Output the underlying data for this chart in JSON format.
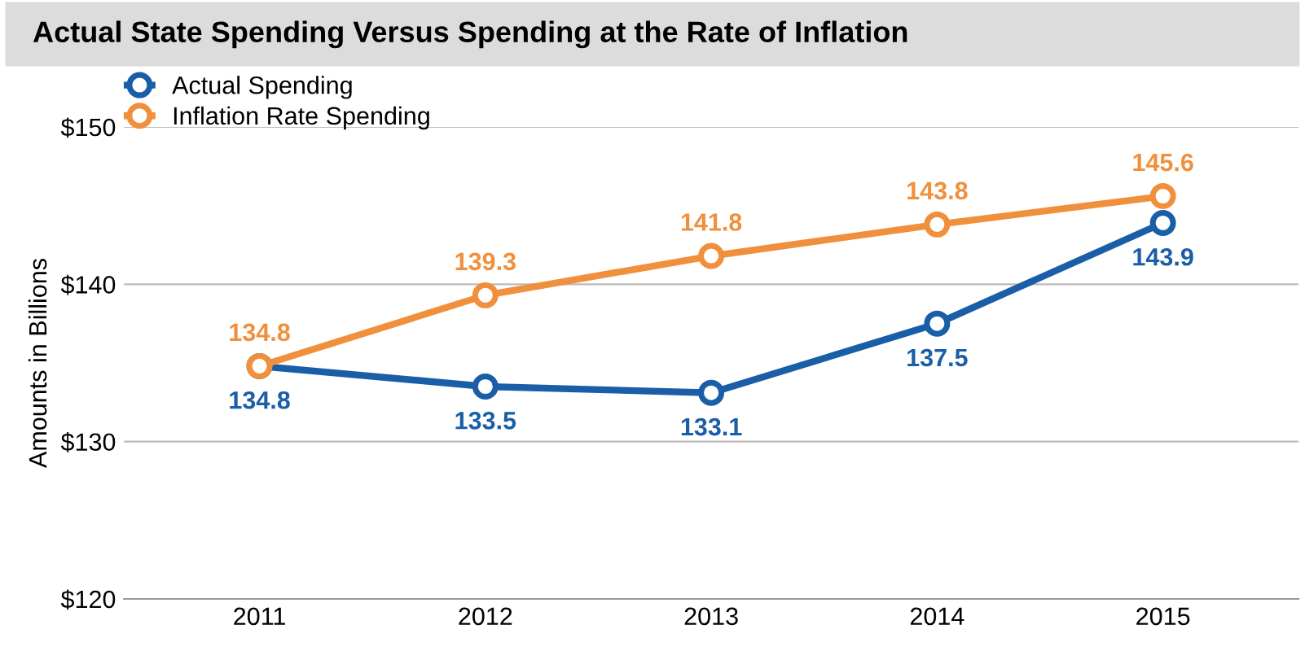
{
  "chart_data": {
    "type": "line",
    "title": "Actual State Spending Versus Spending at the Rate of Inflation",
    "ylabel": "Amounts in Billions",
    "categories": [
      "2011",
      "2012",
      "2013",
      "2014",
      "2015"
    ],
    "series": [
      {
        "name": "Actual Spending",
        "color": "#1a5ea8",
        "values": [
          134.8,
          133.5,
          133.1,
          137.5,
          143.9
        ]
      },
      {
        "name": "Inflation Rate Spending",
        "color": "#f0903c",
        "values": [
          134.8,
          139.3,
          141.8,
          143.8,
          145.6
        ]
      }
    ],
    "ylim": [
      120,
      150
    ],
    "yticks": [
      {
        "value": 120,
        "label": "$120"
      },
      {
        "value": 130,
        "label": "$130"
      },
      {
        "value": 140,
        "label": "$140"
      },
      {
        "value": 150,
        "label": "$150"
      }
    ],
    "grid": "y",
    "legend": "top left",
    "marker": "circle",
    "line_style": "solid",
    "data_labels": true
  }
}
